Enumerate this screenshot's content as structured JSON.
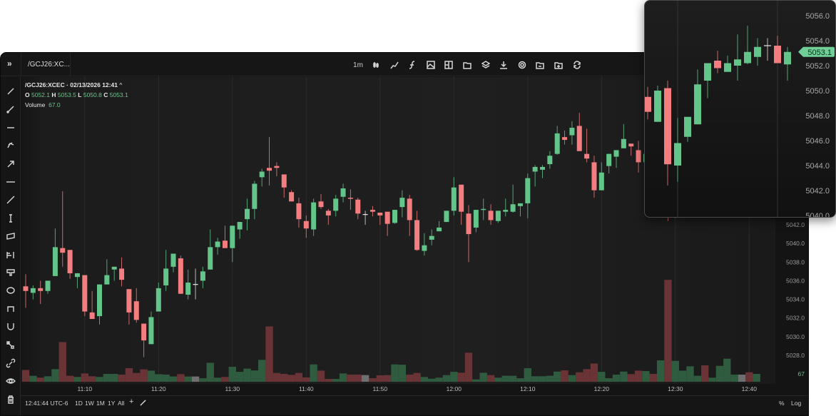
{
  "window": {
    "tab_label": "/GCJ26:XC...",
    "expand_icon": "double-chevron-right-icon"
  },
  "toolbar": {
    "interval": "1m",
    "icons": [
      "candle-type-icon",
      "indicator-line-icon",
      "function-icon",
      "image-icon",
      "layout-icon",
      "folder-icon",
      "layers-icon",
      "download-icon",
      "settings-icon",
      "folder-open-icon",
      "folder-add-icon",
      "refresh-icon"
    ]
  },
  "drawing_tools": [
    "trend-line-icon",
    "ray-icon",
    "horizontal-segment-icon",
    "pitchfork-icon",
    "arrow-icon",
    "horizontal-line-icon",
    "extended-line-icon",
    "vertical-line-icon",
    "parallel-channel-icon",
    "fib-icon",
    "callout-icon",
    "ellipse-icon",
    "bracket-icon",
    "magnet-icon",
    "brush-icon",
    "link-icon",
    "eye-icon",
    "trash-icon"
  ],
  "legend": {
    "title": "/GCJ26:XCEC · 02/13/2026 12:41",
    "caret": "^",
    "o_label": "O",
    "o": "5052.1",
    "h_label": "H",
    "h": "5053.5",
    "l_label": "L",
    "l": "5050.8",
    "c_label": "C",
    "c": "5053.1",
    "volume_label": "Volume",
    "volume": "67.0"
  },
  "bottom": {
    "clock": "12:41:44 UTC-6",
    "ranges": [
      "1D",
      "1W",
      "1M",
      "1Y",
      "All"
    ],
    "add": "+",
    "percent": "%",
    "log": "Log"
  },
  "colors": {
    "up": "#63c58a",
    "down": "#f47d7f",
    "doji": "#e0e0e0",
    "vol_up": "#2f5b3f",
    "vol_down": "#6a3437",
    "vol_doji": "#6f6f6f",
    "badge": "#6fcf97"
  },
  "chart_data": {
    "type": "candlestick",
    "symbol": "/GCJ26:XCEC",
    "interval": "1m",
    "times": [
      "11:02",
      "11:03",
      "11:04",
      "11:05",
      "11:06",
      "11:07",
      "11:08",
      "11:09",
      "11:10",
      "11:11",
      "11:12",
      "11:13",
      "11:14",
      "11:15",
      "11:16",
      "11:17",
      "11:18",
      "11:19",
      "11:20",
      "11:21",
      "11:22",
      "11:23",
      "11:24",
      "11:25",
      "11:26",
      "11:27",
      "11:28",
      "11:29",
      "11:30",
      "11:31",
      "11:32",
      "11:33",
      "11:34",
      "11:35",
      "11:36",
      "11:37",
      "11:38",
      "11:39",
      "11:40",
      "11:41",
      "11:42",
      "11:43",
      "11:44",
      "11:45",
      "11:46",
      "11:47",
      "11:48",
      "11:49",
      "11:50",
      "11:51",
      "11:52",
      "11:53",
      "11:54",
      "11:55",
      "11:56",
      "11:57",
      "11:58",
      "11:59",
      "12:00",
      "12:01",
      "12:02",
      "12:03",
      "12:04",
      "12:05",
      "12:06",
      "12:07",
      "12:08",
      "12:09",
      "12:10",
      "12:11",
      "12:12",
      "12:13",
      "12:14",
      "12:15",
      "12:16",
      "12:17",
      "12:18",
      "12:19",
      "12:20",
      "12:21",
      "12:22",
      "12:23",
      "12:24",
      "12:25",
      "12:26",
      "12:27",
      "12:28",
      "12:29",
      "12:30",
      "12:31",
      "12:32",
      "12:33",
      "12:34",
      "12:35",
      "12:36",
      "12:37",
      "12:38",
      "12:39",
      "12:40",
      "12:41"
    ],
    "ohlc": [
      [
        5035.4,
        5036.7,
        5033.1,
        5034.9
      ],
      [
        5034.7,
        5035.5,
        5034.0,
        5035.2
      ],
      [
        5035.2,
        5036.0,
        5033.5,
        5034.9
      ],
      [
        5034.9,
        5036.0,
        5034.6,
        5036.0
      ],
      [
        5036.5,
        5041.6,
        5036.5,
        5039.6
      ],
      [
        5039.5,
        5045.6,
        5037.5,
        5039.0
      ],
      [
        5039.3,
        5039.3,
        5036.2,
        5036.8
      ],
      [
        5036.4,
        5036.8,
        5035.2,
        5036.8
      ],
      [
        5036.6,
        5036.6,
        5032.2,
        5032.7
      ],
      [
        5032.6,
        5034.9,
        5031.9,
        5031.9
      ],
      [
        5032.2,
        5035.6,
        5031.3,
        5035.6
      ],
      [
        5035.6,
        5038.3,
        5035.6,
        5036.6
      ],
      [
        5037.2,
        5037.5,
        5036.0,
        5037.5
      ],
      [
        5037.3,
        5038.5,
        5035.4,
        5036.1
      ],
      [
        5035.1,
        5035.1,
        5031.3,
        5032.6
      ],
      [
        5033.8,
        5035.2,
        5031.5,
        5031.8
      ],
      [
        5031.4,
        5031.4,
        5027.8,
        5029.6
      ],
      [
        5029.2,
        5032.7,
        5029.2,
        5032.1
      ],
      [
        5032.7,
        5035.8,
        5032.7,
        5035.2
      ],
      [
        5035.5,
        5039.3,
        5034.9,
        5037.3
      ],
      [
        5037.5,
        5038.9,
        5036.9,
        5038.9
      ],
      [
        5038.4,
        5038.7,
        5034.6,
        5034.6
      ],
      [
        5034.5,
        5037.2,
        5034.0,
        5035.8
      ],
      [
        5035.6,
        5037.3,
        5034.0,
        5035.6
      ],
      [
        5036.0,
        5037.5,
        5035.2,
        5037.0
      ],
      [
        5037.2,
        5041.5,
        5037.2,
        5039.6
      ],
      [
        5039.6,
        5040.6,
        5038.8,
        5040.2
      ],
      [
        5040.3,
        5041.9,
        5039.5,
        5039.5
      ],
      [
        5039.5,
        5041.9,
        5038.0,
        5041.9
      ],
      [
        5041.5,
        5042.3,
        5040.5,
        5042.3
      ],
      [
        5042.6,
        5044.8,
        5041.4,
        5043.7
      ],
      [
        5043.7,
        5046.7,
        5042.6,
        5046.4
      ],
      [
        5047.1,
        5048.0,
        5046.1,
        5047.7
      ],
      [
        5048.1,
        5051.4,
        5046.2,
        5047.8
      ],
      [
        5048.3,
        5048.7,
        5047.2,
        5048.1
      ],
      [
        5047.4,
        5047.4,
        5044.9,
        5046.0
      ],
      [
        5045.5,
        5045.7,
        5044.5,
        5044.5
      ],
      [
        5044.3,
        5044.9,
        5041.7,
        5042.6
      ],
      [
        5042.4,
        5043.0,
        5040.6,
        5041.6
      ],
      [
        5041.5,
        5044.8,
        5040.8,
        5044.4
      ],
      [
        5044.5,
        5045.3,
        5043.7,
        5043.9
      ],
      [
        5043.5,
        5043.7,
        5042.0,
        5043.0
      ],
      [
        5043.5,
        5045.2,
        5042.9,
        5044.8
      ],
      [
        5045.0,
        5046.4,
        5044.4,
        5045.9
      ],
      [
        5044.9,
        5045.8,
        5043.6,
        5044.8
      ],
      [
        5044.7,
        5044.9,
        5042.6,
        5043.2
      ],
      [
        5043.1,
        5043.5,
        5042.0,
        5043.1
      ],
      [
        5043.6,
        5044.0,
        5042.9,
        5043.4
      ],
      [
        5043.3,
        5043.3,
        5042.0,
        5043.0
      ],
      [
        5043.4,
        5043.4,
        5040.8,
        5042.1
      ],
      [
        5042.2,
        5043.6,
        5042.1,
        5043.6
      ],
      [
        5043.9,
        5045.7,
        5042.8,
        5044.9
      ],
      [
        5044.8,
        5045.2,
        5040.8,
        5042.5
      ],
      [
        5042.5,
        5043.5,
        5039.2,
        5039.3
      ],
      [
        5039.2,
        5041.1,
        5038.7,
        5039.8
      ],
      [
        5040.4,
        5041.5,
        5039.8,
        5040.8
      ],
      [
        5041.3,
        5042.4,
        5041.3,
        5041.7
      ],
      [
        5042.3,
        5043.5,
        5042.3,
        5043.5
      ],
      [
        5043.5,
        5047.1,
        5043.0,
        5046.0
      ],
      [
        5046.3,
        5046.3,
        5042.0,
        5043.4
      ],
      [
        5043.2,
        5044.1,
        5038.0,
        5041.0
      ],
      [
        5041.7,
        5043.6,
        5041.2,
        5043.6
      ],
      [
        5043.6,
        5044.8,
        5042.5,
        5043.7
      ],
      [
        5043.5,
        5044.2,
        5042.0,
        5042.5
      ],
      [
        5042.4,
        5043.5,
        5042.2,
        5043.5
      ],
      [
        5043.4,
        5044.8,
        5042.9,
        5043.6
      ],
      [
        5043.4,
        5046.3,
        5043.3,
        5044.2
      ],
      [
        5044.0,
        5044.3,
        5042.9,
        5044.3
      ],
      [
        5044.3,
        5047.5,
        5042.7,
        5047.0
      ],
      [
        5047.7,
        5048.4,
        5046.1,
        5048.2
      ],
      [
        5047.9,
        5048.4,
        5047.0,
        5048.2
      ],
      [
        5048.5,
        5049.9,
        5048.0,
        5049.4
      ],
      [
        5049.6,
        5052.6,
        5049.5,
        5051.8
      ],
      [
        5051.4,
        5052.1,
        5050.6,
        5051.1
      ],
      [
        5051.6,
        5053.1,
        5050.6,
        5052.4
      ],
      [
        5052.6,
        5054.0,
        5049.9,
        5049.9
      ],
      [
        5049.6,
        5052.3,
        5048.7,
        5049.1
      ],
      [
        5048.7,
        5049.4,
        5044.9,
        5045.7
      ],
      [
        5045.7,
        5048.7,
        5045.7,
        5047.6
      ],
      [
        5048.3,
        5049.6,
        5047.5,
        5049.6
      ],
      [
        5049.3,
        5050.0,
        5048.1,
        5050.0
      ],
      [
        5050.2,
        5052.8,
        5050.2,
        5051.2
      ],
      [
        5050.7,
        5050.7,
        5049.4,
        5050.4
      ],
      [
        5050.0,
        5051.0,
        5047.6,
        5048.7
      ],
      [
        5048.7,
        5050.0,
        5048.3,
        5049.6
      ],
      [
        5049.5,
        5050.3,
        5047.7,
        5048.3
      ],
      [
        5047.5,
        5050.4,
        5047.5,
        5050.0
      ],
      [
        5050.2,
        5050.8,
        5042.4,
        5044.1
      ],
      [
        5044.0,
        5047.8,
        5042.7,
        5045.8
      ],
      [
        5046.3,
        5047.9,
        5045.9,
        5047.9
      ],
      [
        5047.3,
        5051.7,
        5047.3,
        5050.5
      ],
      [
        5050.8,
        5052.2,
        5049.4,
        5052.2
      ],
      [
        5052.4,
        5053.2,
        5051.4,
        5051.8
      ],
      [
        5051.5,
        5052.8,
        5051.5,
        5052.2
      ],
      [
        5052.0,
        5054.5,
        5050.8,
        5052.5
      ],
      [
        5052.2,
        5055.2,
        5052.1,
        5053.1
      ],
      [
        5052.7,
        5054.2,
        5052.0,
        5053.5
      ],
      [
        5053.6,
        5054.2,
        5052.4,
        5053.6
      ],
      [
        5053.6,
        5054.4,
        5052.2,
        5052.2
      ],
      [
        5052.1,
        5053.5,
        5050.8,
        5053.1
      ]
    ],
    "volume": [
      101,
      51,
      35,
      47,
      108,
      339,
      51,
      41,
      71,
      47,
      41,
      67,
      67,
      61,
      116,
      75,
      106,
      95,
      65,
      61,
      45,
      65,
      45,
      45,
      30,
      162,
      35,
      41,
      128,
      85,
      112,
      97,
      187,
      473,
      75,
      67,
      59,
      75,
      37,
      148,
      95,
      24,
      24,
      71,
      61,
      61,
      57,
      30,
      55,
      57,
      148,
      146,
      61,
      75,
      41,
      26,
      35,
      57,
      85,
      77,
      248,
      20,
      77,
      57,
      35,
      51,
      51,
      30,
      116,
      47,
      47,
      51,
      87,
      97,
      57,
      81,
      108,
      156,
      85,
      30,
      61,
      87,
      65,
      95,
      91,
      67,
      183,
      871,
      179,
      95,
      132,
      51,
      140,
      35,
      136,
      197,
      61,
      61,
      81,
      67
    ],
    "x_ticks": [
      "11:10",
      "11:20",
      "11:30",
      "11:40",
      "11:50",
      "12:00",
      "12:10",
      "12:20",
      "12:30",
      "12:40"
    ],
    "y_ticks": [
      "5028.0",
      "5030.0",
      "5032.0",
      "5034.0",
      "5036.0",
      "5038.0",
      "5040.0",
      "5042.0",
      "5044.0",
      "5046.0",
      "5048.0",
      "5050.0",
      "5052.0",
      "5054.0"
    ],
    "ylim": [
      5026.5,
      5056
    ],
    "volume_last_label": "67",
    "inset": {
      "first_time": "12:27",
      "y_ticks": [
        "5040.0",
        "5042.0",
        "5044.0",
        "5046.0",
        "5048.0",
        "5050.0",
        "5052.0",
        "5054.0",
        "5056.0"
      ],
      "ylim": [
        5040,
        5056.5
      ],
      "last_price": "5053.1"
    }
  }
}
